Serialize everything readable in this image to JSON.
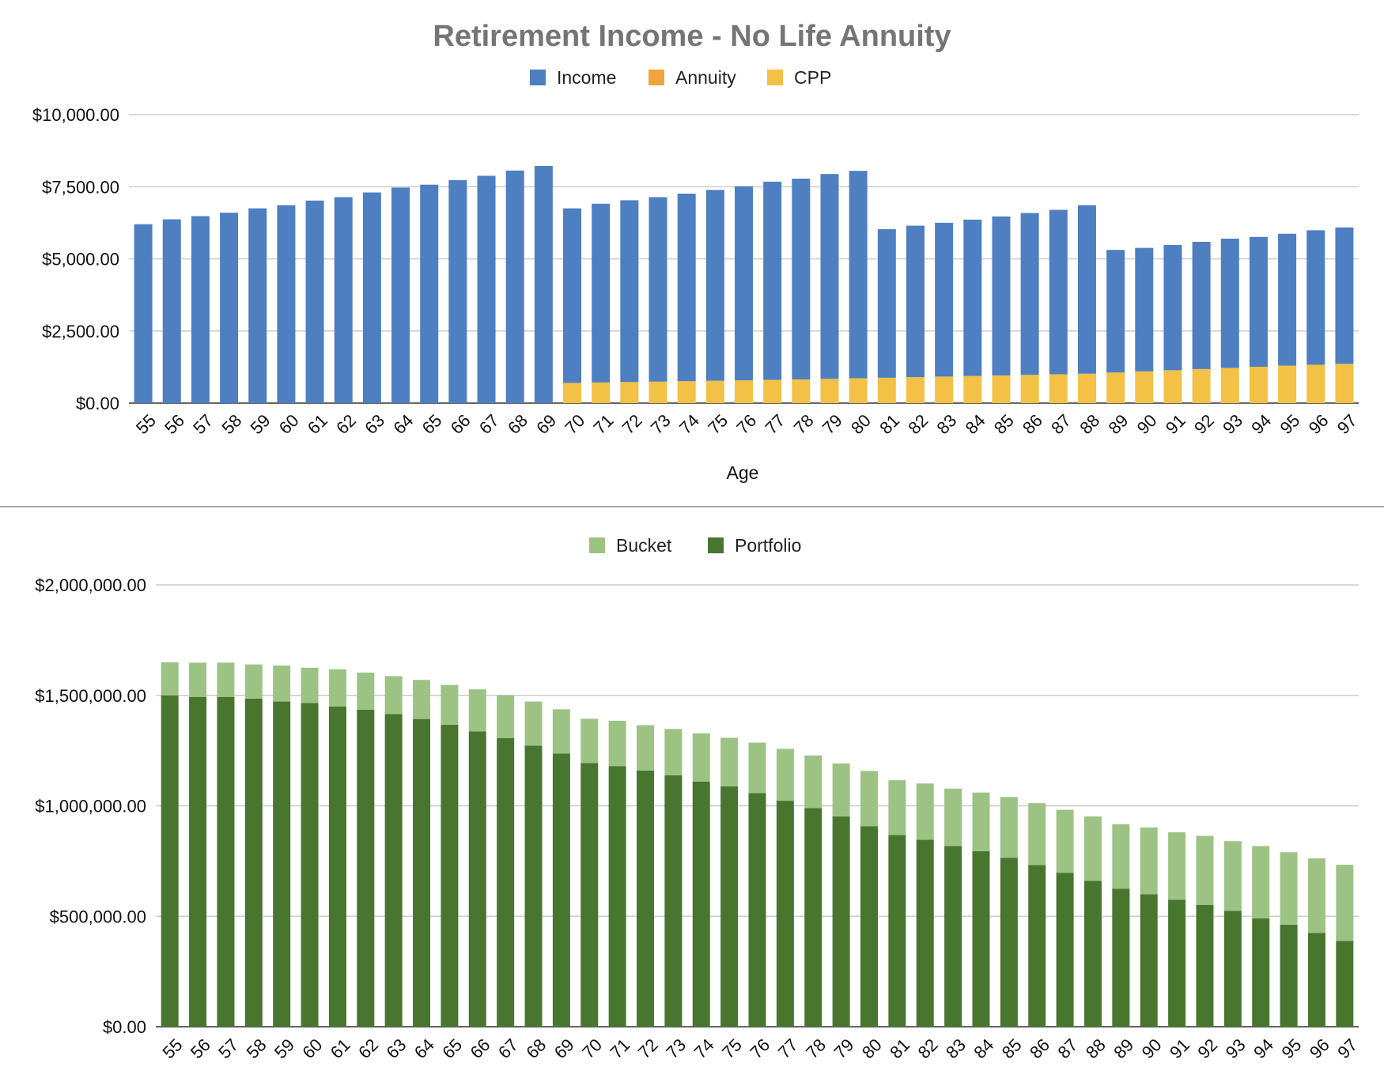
{
  "chart_data": [
    {
      "type": "bar",
      "stacked": true,
      "title": "Retirement Income - No Life Annuity",
      "xlabel": "Age",
      "ylabel": "",
      "ylim": [
        0,
        10000
      ],
      "yticks": [
        0,
        2500,
        5000,
        7500,
        10000
      ],
      "ytick_labels": [
        "$0.00",
        "$2,500.00",
        "$5,000.00",
        "$7,500.00",
        "$10,000.00"
      ],
      "grid": true,
      "legend_position": "top",
      "categories": [
        "55",
        "56",
        "57",
        "58",
        "59",
        "60",
        "61",
        "62",
        "63",
        "64",
        "65",
        "66",
        "67",
        "68",
        "69",
        "70",
        "71",
        "72",
        "73",
        "74",
        "75",
        "76",
        "77",
        "78",
        "79",
        "80",
        "81",
        "82",
        "83",
        "84",
        "85",
        "86",
        "87",
        "88",
        "89",
        "90",
        "91",
        "92",
        "93",
        "94",
        "95",
        "96",
        "97"
      ],
      "series": [
        {
          "name": "CPP",
          "color": "#f2c146",
          "values": [
            0,
            0,
            0,
            0,
            0,
            0,
            0,
            0,
            0,
            0,
            0,
            0,
            0,
            0,
            0,
            700,
            715,
            730,
            745,
            760,
            775,
            790,
            805,
            820,
            840,
            860,
            880,
            900,
            920,
            940,
            960,
            980,
            1000,
            1020,
            1060,
            1100,
            1140,
            1180,
            1220,
            1260,
            1300,
            1330,
            1360
          ]
        },
        {
          "name": "Annuity",
          "color": "#f0a53c",
          "values": [
            0,
            0,
            0,
            0,
            0,
            0,
            0,
            0,
            0,
            0,
            0,
            0,
            0,
            0,
            0,
            0,
            0,
            0,
            0,
            0,
            0,
            0,
            0,
            0,
            0,
            0,
            0,
            0,
            0,
            0,
            0,
            0,
            0,
            0,
            0,
            0,
            0,
            0,
            0,
            0,
            0,
            0,
            0
          ]
        },
        {
          "name": "Income",
          "color": "#4e7fc1",
          "values": [
            6200,
            6370,
            6480,
            6600,
            6750,
            6860,
            7020,
            7140,
            7300,
            7470,
            7570,
            7730,
            7880,
            8060,
            8220,
            6050,
            6195,
            6300,
            6395,
            6500,
            6615,
            6730,
            6870,
            6960,
            7100,
            7190,
            5150,
            5250,
            5330,
            5420,
            5510,
            5610,
            5700,
            5840,
            4250,
            4280,
            4340,
            4410,
            4480,
            4500,
            4570,
            4660,
            4730
          ]
        }
      ],
      "legend": [
        "Income",
        "Annuity",
        "CPP"
      ]
    },
    {
      "type": "bar",
      "stacked": true,
      "title": "",
      "xlabel": "",
      "ylabel": "",
      "ylim": [
        0,
        2000000
      ],
      "yticks": [
        0,
        500000,
        1000000,
        1500000,
        2000000
      ],
      "ytick_labels": [
        "$0.00",
        "$500,000.00",
        "$1,000,000.00",
        "$1,500,000.00",
        "$2,000,000.00"
      ],
      "grid": true,
      "legend_position": "top",
      "categories": [
        "55",
        "56",
        "57",
        "58",
        "59",
        "60",
        "61",
        "62",
        "63",
        "64",
        "65",
        "66",
        "67",
        "68",
        "69",
        "70",
        "71",
        "72",
        "73",
        "74",
        "75",
        "76",
        "77",
        "78",
        "79",
        "80",
        "81",
        "82",
        "83",
        "84",
        "85",
        "86",
        "87",
        "88",
        "89",
        "90",
        "91",
        "92",
        "93",
        "94",
        "95",
        "96",
        "97"
      ],
      "series": [
        {
          "name": "Portfolio",
          "color": "#48762f",
          "values": [
            1500000,
            1493000,
            1493000,
            1485000,
            1472000,
            1465000,
            1450000,
            1435000,
            1415000,
            1393000,
            1367000,
            1337000,
            1307000,
            1272000,
            1237000,
            1194000,
            1180000,
            1160000,
            1138000,
            1110000,
            1088000,
            1058000,
            1023000,
            990000,
            952000,
            908000,
            868000,
            846000,
            818000,
            795000,
            765000,
            732000,
            697000,
            660000,
            625000,
            600000,
            575000,
            552000,
            525000,
            490000,
            462000,
            425000,
            388000
          ]
        },
        {
          "name": "Bucket",
          "color": "#9dc384",
          "values": [
            150000,
            155000,
            155000,
            155000,
            163000,
            160000,
            168000,
            168000,
            172000,
            177000,
            180000,
            190000,
            193000,
            200000,
            200000,
            200000,
            205000,
            205000,
            210000,
            218000,
            220000,
            228000,
            235000,
            238000,
            240000,
            250000,
            248000,
            255000,
            260000,
            265000,
            275000,
            280000,
            285000,
            292000,
            292000,
            302000,
            305000,
            312000,
            315000,
            328000,
            328000,
            337000,
            345000
          ]
        }
      ],
      "legend": [
        "Bucket",
        "Portfolio"
      ]
    }
  ]
}
